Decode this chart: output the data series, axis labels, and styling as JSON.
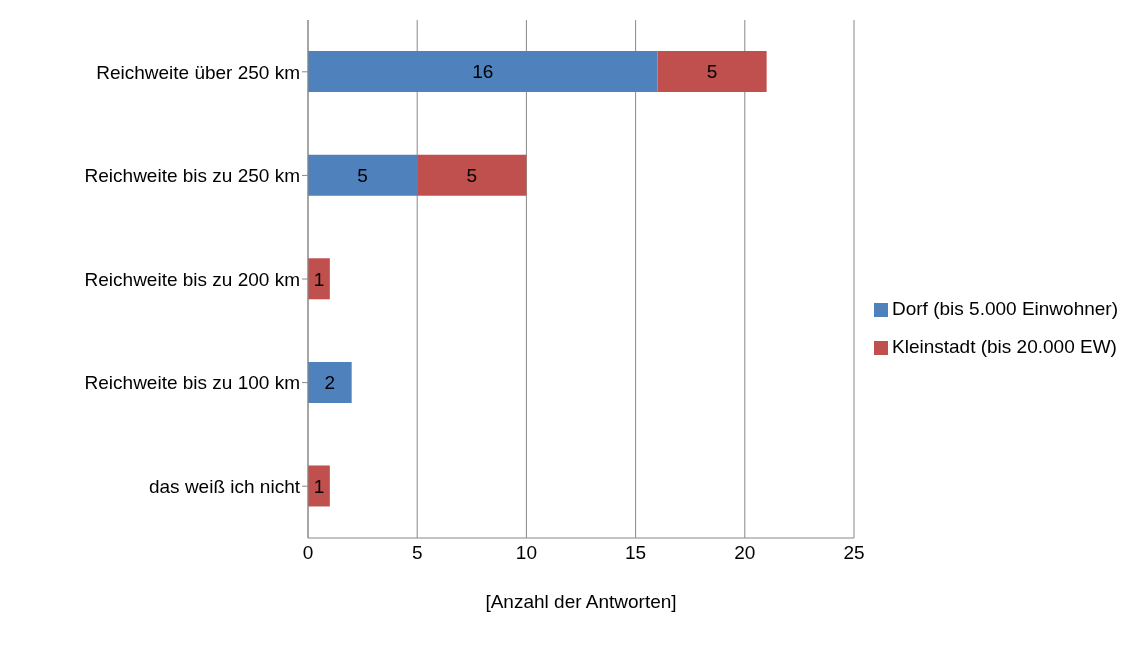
{
  "chart_data": {
    "type": "bar",
    "orientation": "horizontal",
    "stacked": true,
    "categories": [
      "Reichweite über 250 km",
      "Reichweite bis zu 250 km",
      "Reichweite bis zu 200 km",
      "Reichweite bis zu 100 km",
      "das weiß ich nicht"
    ],
    "series": [
      {
        "name": "Dorf (bis 5.000 Einwohner)",
        "color": "#4f81bd",
        "values": [
          16,
          5,
          null,
          2,
          null
        ]
      },
      {
        "name": "Kleinstadt (bis 20.000 EW)",
        "color": "#c0504d",
        "values": [
          5,
          5,
          1,
          null,
          1
        ]
      }
    ],
    "xlabel": "[Anzahl der Antworten]",
    "xlim": [
      0,
      25
    ],
    "xticks": [
      0,
      5,
      10,
      15,
      20,
      25
    ],
    "grid": "x",
    "legend": "right",
    "data_labels": true
  }
}
